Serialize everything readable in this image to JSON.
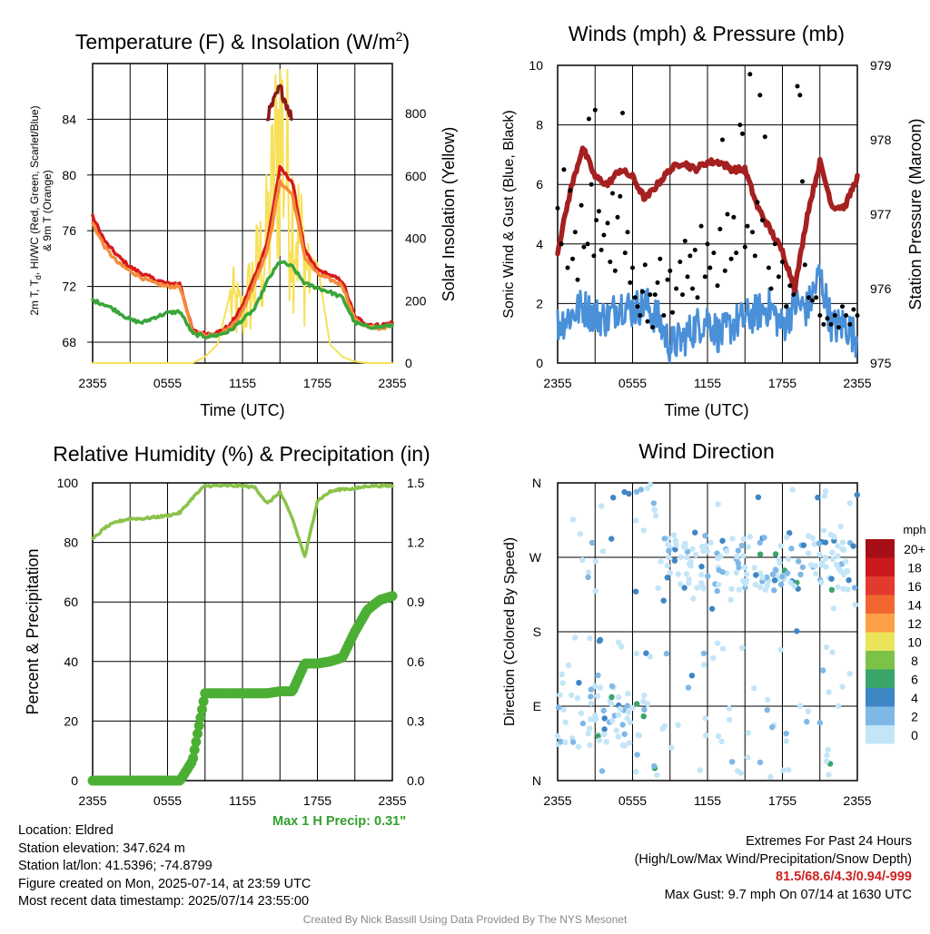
{
  "panels": {
    "temp": {
      "title": "Temperature (F) & Insolation (W/m",
      "title_sup": "2",
      "title_close": ")",
      "ylabel_line1": "2m T, T",
      "ylabel_sub": "d",
      "ylabel_line1b": ", HI/WC (Red, Green, Scarlet/Blue)",
      "ylabel_line2": "& 9m T (Orange)",
      "y2label": "Solar Insolation (Yellow)",
      "xlabel": "Time (UTC)"
    },
    "winds": {
      "title": "Winds (mph) & Pressure (mb)",
      "ylabel": "Sonic Wind & Gust (Blue, Black)",
      "y2label": "Station Pressure (Maroon)",
      "xlabel": "Time (UTC)"
    },
    "rh": {
      "title": "Relative Humidity (%) & Precipitation (in)",
      "ylabel": "Percent & Precipitation",
      "precip_note": "Max 1 H Precip: 0.31\""
    },
    "wdir": {
      "title": "Wind Direction",
      "ylabel": "Direction (Colored By Speed)",
      "legend_unit": "mph"
    }
  },
  "chart_data": [
    {
      "type": "line",
      "title": "Temperature (F) & Insolation (W/m2)",
      "xlabel": "Time (UTC)",
      "ylabel": "2m T, Td, HI/WC (Red, Green, Scarlet/Blue) & 9m T (Orange)",
      "y2label": "Solar Insolation (Yellow)",
      "x_ticks": [
        "2355",
        "0555",
        "1155",
        "1755",
        "2355"
      ],
      "ylim": [
        66.5,
        88
      ],
      "y_ticks": [
        68,
        72,
        76,
        80,
        84
      ],
      "y2lim": [
        0,
        960
      ],
      "y2_ticks": [
        0,
        200,
        400,
        600,
        800
      ],
      "x": [
        0,
        1,
        2,
        3,
        4,
        5,
        6,
        7,
        8,
        9,
        10,
        11,
        12,
        13,
        14,
        15,
        16,
        17,
        18,
        19,
        20,
        21,
        22,
        23,
        24
      ],
      "series": [
        {
          "name": "2m T",
          "color": "#d7191c",
          "values": [
            77,
            75.2,
            74.2,
            73.4,
            72.9,
            72.5,
            72.2,
            72.2,
            68.8,
            68.6,
            68.7,
            69.2,
            70.6,
            72.8,
            75.2,
            80.5,
            79.5,
            74.5,
            73.2,
            72.8,
            72.4,
            69.8,
            69.3,
            69.2,
            69.4
          ]
        },
        {
          "name": "9m T",
          "color": "#f48c3a",
          "values": [
            76.5,
            74.8,
            73.7,
            73.1,
            72.6,
            72.2,
            72.0,
            72.0,
            68.7,
            68.5,
            68.6,
            69.0,
            70.2,
            72.4,
            74.6,
            79.5,
            78.6,
            74.1,
            72.9,
            72.5,
            72.1,
            69.6,
            69.1,
            69.0,
            69.2
          ]
        },
        {
          "name": "HI/WC",
          "color": "#8b1a1a",
          "values": [
            null,
            null,
            null,
            null,
            null,
            null,
            null,
            null,
            null,
            null,
            null,
            null,
            null,
            null,
            84.2,
            86.3,
            84.0,
            null,
            null,
            null,
            null,
            null,
            null,
            null,
            null
          ]
        },
        {
          "name": "Td",
          "color": "#3aa53a",
          "values": [
            71,
            70.7,
            70.2,
            69.6,
            69.4,
            69.8,
            70.1,
            70.2,
            68.6,
            68.4,
            68.5,
            68.8,
            69.6,
            70.4,
            72.4,
            73.8,
            73.4,
            72.2,
            71.9,
            71.6,
            71.2,
            69.4,
            69.1,
            69.1,
            69.2
          ]
        },
        {
          "name": "Solar Insolation",
          "color": "#f7e15a",
          "axis": "y2",
          "values": [
            0,
            0,
            0,
            0,
            0,
            0,
            0,
            0,
            0,
            20,
            60,
            220,
            170,
            300,
            420,
            860,
            540,
            360,
            320,
            60,
            20,
            5,
            0,
            0,
            0
          ]
        }
      ]
    },
    {
      "type": "scatter",
      "title": "Winds (mph) & Pressure (mb)",
      "xlabel": "Time (UTC)",
      "ylabel": "Sonic Wind & Gust (Blue, Black)",
      "y2label": "Station Pressure (Maroon)",
      "x_ticks": [
        "2355",
        "0555",
        "1155",
        "1755",
        "2355"
      ],
      "ylim": [
        0,
        10
      ],
      "y_ticks": [
        0,
        2,
        4,
        6,
        8,
        10
      ],
      "y2lim": [
        975,
        979
      ],
      "y2_ticks": [
        975,
        976,
        977,
        978,
        979
      ],
      "x": [
        0,
        1,
        2,
        3,
        4,
        5,
        6,
        7,
        8,
        9,
        10,
        11,
        12,
        13,
        14,
        15,
        16,
        17,
        18,
        19,
        20,
        21,
        22,
        23,
        24
      ],
      "series": [
        {
          "name": "Sonic Wind",
          "color": "#4a90d9",
          "values": [
            1.3,
            1.6,
            1.9,
            1.6,
            1.5,
            2.0,
            1.8,
            2.0,
            1.5,
            0.6,
            0.8,
            1.2,
            1.5,
            0.9,
            1.3,
            1.5,
            1.7,
            1.9,
            1.2,
            2.0,
            1.8,
            3.0,
            1.2,
            1.3,
            0.8
          ]
        },
        {
          "name": "Pressure",
          "color": "#a52020",
          "axis": "y2",
          "values": [
            976.5,
            977.3,
            977.9,
            977.5,
            977.4,
            977.6,
            977.5,
            977.2,
            977.4,
            977.6,
            977.7,
            977.6,
            977.7,
            977.7,
            977.6,
            977.6,
            977.1,
            976.8,
            976.5,
            976.0,
            977.0,
            977.7,
            977.1,
            977.1,
            977.5
          ]
        }
      ],
      "gust_points": [
        [
          0,
          5.2
        ],
        [
          0.3,
          4.0
        ],
        [
          0.5,
          6.5
        ],
        [
          0.8,
          3.2
        ],
        [
          1,
          5.8
        ],
        [
          1.2,
          3.5
        ],
        [
          1.4,
          4.4
        ],
        [
          1.6,
          2.8
        ],
        [
          1.9,
          5.3
        ],
        [
          2.1,
          3.9
        ],
        [
          2.4,
          4.0
        ],
        [
          2.5,
          8.2
        ],
        [
          2.7,
          6.0
        ],
        [
          2.9,
          3.6
        ],
        [
          3.0,
          8.5
        ],
        [
          3.1,
          4.8
        ],
        [
          3.3,
          5.1
        ],
        [
          3.5,
          3.8
        ],
        [
          3.7,
          4.3
        ],
        [
          4.0,
          4.7
        ],
        [
          4.2,
          3.4
        ],
        [
          4.4,
          5.7
        ],
        [
          4.6,
          3.1
        ],
        [
          4.8,
          4.9
        ],
        [
          5.0,
          5.6
        ],
        [
          5.2,
          8.4
        ],
        [
          5.4,
          3.7
        ],
        [
          5.6,
          4.4
        ],
        [
          5.8,
          2.7
        ],
        [
          6.0,
          3.2
        ],
        [
          6.2,
          2.2
        ],
        [
          6.4,
          1.9
        ],
        [
          6.6,
          1.6
        ],
        [
          6.8,
          2.4
        ],
        [
          7.0,
          3.3
        ],
        [
          7.2,
          1.4
        ],
        [
          7.4,
          2.3
        ],
        [
          7.6,
          1.2
        ],
        [
          7.8,
          2.3
        ],
        [
          8.0,
          2.7
        ],
        [
          8.2,
          3.5
        ],
        [
          8.5,
          1.6
        ],
        [
          8.8,
          2.8
        ],
        [
          9.0,
          3.1
        ],
        [
          9.2,
          1.7
        ],
        [
          9.5,
          2.5
        ],
        [
          9.8,
          3.4
        ],
        [
          10.0,
          2.3
        ],
        [
          10.2,
          4.1
        ],
        [
          10.4,
          2.9
        ],
        [
          10.6,
          3.6
        ],
        [
          10.8,
          2.5
        ],
        [
          11.0,
          3.8
        ],
        [
          11.2,
          2.2
        ],
        [
          11.5,
          4.6
        ],
        [
          11.8,
          2.9
        ],
        [
          12.0,
          4.0
        ],
        [
          12.2,
          3.2
        ],
        [
          12.5,
          3.7
        ],
        [
          12.8,
          2.6
        ],
        [
          13.0,
          4.5
        ],
        [
          13.2,
          7.5
        ],
        [
          13.4,
          3.1
        ],
        [
          13.6,
          5.0
        ],
        [
          13.9,
          3.5
        ],
        [
          14.1,
          4.9
        ],
        [
          14.3,
          3.7
        ],
        [
          14.6,
          8.0
        ],
        [
          14.8,
          7.7
        ],
        [
          15.0,
          3.9
        ],
        [
          15.2,
          4.6
        ],
        [
          15.4,
          9.7
        ],
        [
          15.6,
          4.4
        ],
        [
          15.8,
          3.6
        ],
        [
          16.0,
          5.4
        ],
        [
          16.2,
          9.0
        ],
        [
          16.4,
          4.8
        ],
        [
          16.6,
          7.6
        ],
        [
          16.9,
          3.2
        ],
        [
          17.1,
          2.5
        ],
        [
          17.4,
          4.0
        ],
        [
          17.7,
          2.9
        ],
        [
          18.0,
          3.4
        ],
        [
          18.3,
          1.9
        ],
        [
          18.6,
          2.6
        ],
        [
          18.9,
          2.3
        ],
        [
          19.2,
          9.3
        ],
        [
          19.4,
          9.0
        ],
        [
          19.6,
          6.1
        ],
        [
          19.8,
          3.3
        ],
        [
          20.1,
          2.2
        ],
        [
          20.4,
          2.1
        ],
        [
          20.7,
          2.2
        ],
        [
          21.0,
          1.6
        ],
        [
          21.3,
          1.3
        ],
        [
          21.6,
          1.5
        ],
        [
          21.9,
          1.3
        ],
        [
          22.2,
          1.6
        ],
        [
          22.5,
          1.2
        ],
        [
          22.8,
          1.9
        ],
        [
          23.1,
          1.6
        ],
        [
          23.4,
          1.3
        ],
        [
          23.7,
          1.8
        ],
        [
          24.0,
          1.6
        ]
      ]
    },
    {
      "type": "line",
      "title": "Relative Humidity (%) & Precipitation (in)",
      "ylabel": "Percent & Precipitation",
      "x_ticks": [
        "2355",
        "0555",
        "1155",
        "1755",
        "2355"
      ],
      "ylim": [
        0,
        100
      ],
      "y_ticks": [
        0,
        20,
        40,
        60,
        80,
        100
      ],
      "y2lim": [
        0,
        1.5
      ],
      "y2_ticks": [
        "0.0",
        "0.3",
        "0.6",
        "0.9",
        "1.2",
        "1.5"
      ],
      "x": [
        0,
        1,
        2,
        3,
        4,
        5,
        6,
        7,
        8,
        9,
        10,
        11,
        12,
        13,
        14,
        15,
        16,
        17,
        18,
        19,
        20,
        21,
        22,
        23,
        24
      ],
      "series": [
        {
          "name": "Relative Humidity",
          "color": "#8bc34a",
          "values": [
            81,
            85,
            87,
            88,
            88,
            88.5,
            89,
            90,
            95,
            99,
            99,
            99,
            99,
            98.5,
            93,
            97,
            88,
            75,
            94,
            97,
            98,
            98,
            99,
            99,
            99
          ]
        },
        {
          "name": "Precipitation",
          "color": "#4caf35",
          "axis": "y2",
          "values": [
            0,
            0,
            0,
            0,
            0,
            0,
            0,
            0,
            0.1,
            0.44,
            0.44,
            0.44,
            0.44,
            0.44,
            0.44,
            0.45,
            0.45,
            0.59,
            0.59,
            0.6,
            0.62,
            0.75,
            0.86,
            0.91,
            0.93
          ]
        }
      ]
    },
    {
      "type": "scatter",
      "title": "Wind Direction",
      "ylabel": "Direction (Colored By Speed)",
      "x_ticks": [
        "2355",
        "0555",
        "1155",
        "1755",
        "2355"
      ],
      "y_ticks": [
        "N",
        "E",
        "S",
        "W",
        "N"
      ],
      "ylim": [
        0,
        360
      ],
      "legend_title": "mph",
      "legend_levels": [
        "20+",
        "18",
        "16",
        "14",
        "12",
        "10",
        "8",
        "6",
        "4",
        "2",
        "0"
      ],
      "legend_colors": [
        "#a50f15",
        "#cb181d",
        "#e23a2e",
        "#f16630",
        "#fd9f47",
        "#e9e45a",
        "#7cc249",
        "#3aa46a",
        "#3f86c4",
        "#7fb8e6",
        "#c3e5f8"
      ]
    }
  ],
  "footer": {
    "location": "Location: Eldred",
    "elevation": "Station elevation: 347.624 m",
    "latlon": "Station lat/lon: 41.5396; -74.8799",
    "created": "Figure created on Mon, 2025-07-14, at 23:59 UTC",
    "recent": "Most recent data timestamp: 2025/07/14 23:55:00",
    "extremes_title": "Extremes For Past 24 Hours",
    "extremes_sub": "(High/Low/Max Wind/Precipitation/Snow Depth)",
    "extremes_values": "81.5/68.6/4.3/0.94/-999",
    "max_gust": "Max Gust: 9.7 mph On 07/14 at 1630 UTC",
    "credit": "Created By Nick Bassill Using Data Provided By The NYS Mesonet"
  }
}
